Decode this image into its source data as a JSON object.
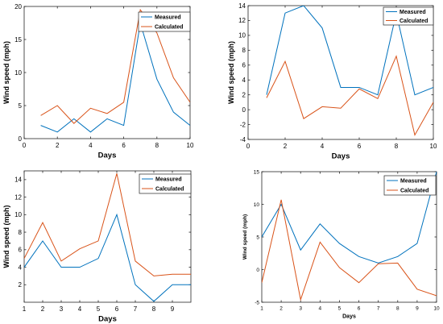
{
  "chart_data": [
    {
      "type": "line",
      "xlabel": "Days",
      "ylabel": "Wind speed (mph)",
      "xlim": [
        0,
        10
      ],
      "ylim": [
        0,
        20
      ],
      "xticks": [
        0,
        2,
        4,
        6,
        8,
        10
      ],
      "yticks": [
        0,
        5,
        10,
        15,
        20
      ],
      "grid": false,
      "legend_position": "top-right",
      "x": [
        1,
        2,
        3,
        4,
        5,
        6,
        7,
        8,
        9,
        10
      ],
      "series": [
        {
          "name": "Measured",
          "color": "#0072bd",
          "values": [
            2,
            1,
            3,
            1,
            3,
            2,
            17.5,
            9,
            4,
            2
          ]
        },
        {
          "name": "Calculated",
          "color": "#d95319",
          "values": [
            3.5,
            5,
            2.3,
            4.6,
            3.8,
            5.5,
            19.5,
            16,
            9.2,
            5.5
          ]
        }
      ]
    },
    {
      "type": "line",
      "xlabel": "Days",
      "ylabel": "Wind speed (mph)",
      "xlim": [
        0,
        10
      ],
      "ylim": [
        -4,
        14
      ],
      "xticks": [
        0,
        2,
        4,
        6,
        8,
        10
      ],
      "yticks": [
        -4,
        -2,
        0,
        2,
        4,
        6,
        8,
        10,
        12,
        14
      ],
      "grid": false,
      "legend_position": "top-right",
      "x": [
        1,
        2,
        3,
        4,
        5,
        6,
        7,
        8,
        9,
        10
      ],
      "series": [
        {
          "name": "Measured",
          "color": "#0072bd",
          "values": [
            2,
            13,
            14,
            11,
            3,
            3,
            2,
            13,
            2,
            3
          ]
        },
        {
          "name": "Calculated",
          "color": "#d95319",
          "values": [
            1.6,
            6.5,
            -1.2,
            0.4,
            0.2,
            2.8,
            1.5,
            7.2,
            -3.4,
            1.0
          ]
        }
      ]
    },
    {
      "type": "line",
      "xlabel": "Days",
      "ylabel": "Wind speed (mph)",
      "xlim": [
        1,
        10
      ],
      "ylim": [
        0,
        15
      ],
      "xticks": [
        1,
        2,
        3,
        4,
        5,
        6,
        7,
        8,
        9
      ],
      "yticks": [
        2,
        4,
        6,
        8,
        10,
        12,
        14
      ],
      "grid": false,
      "legend_position": "top-right",
      "x": [
        1,
        2,
        3,
        4,
        5,
        6,
        7,
        8,
        9,
        10
      ],
      "series": [
        {
          "name": "Measured",
          "color": "#0072bd",
          "values": [
            4,
            7,
            4,
            4,
            5,
            10,
            2,
            0.1,
            2,
            2
          ]
        },
        {
          "name": "Calculated",
          "color": "#d95319",
          "values": [
            5,
            9.1,
            4.7,
            6.1,
            7,
            14.7,
            4.7,
            3,
            3.2,
            3.2
          ]
        }
      ]
    },
    {
      "type": "line",
      "xlabel": "Days",
      "ylabel": "Wind speed (mph)",
      "xlim": [
        1,
        10
      ],
      "ylim": [
        -5,
        15
      ],
      "xticks": [
        1,
        2,
        3,
        4,
        5,
        6,
        7,
        8,
        9,
        10
      ],
      "yticks": [
        -5,
        0,
        5,
        10,
        15
      ],
      "grid": false,
      "legend_position": "top-right",
      "x": [
        1,
        2,
        3,
        4,
        5,
        6,
        7,
        8,
        9,
        10
      ],
      "series": [
        {
          "name": "Measured",
          "color": "#0072bd",
          "values": [
            5,
            10,
            3,
            7,
            4,
            2,
            1,
            2,
            4,
            15
          ]
        },
        {
          "name": "Calculated",
          "color": "#d95319",
          "values": [
            -2,
            10.7,
            -4.6,
            4.2,
            0.3,
            -2,
            0.9,
            1,
            -3,
            -4
          ]
        }
      ]
    }
  ]
}
